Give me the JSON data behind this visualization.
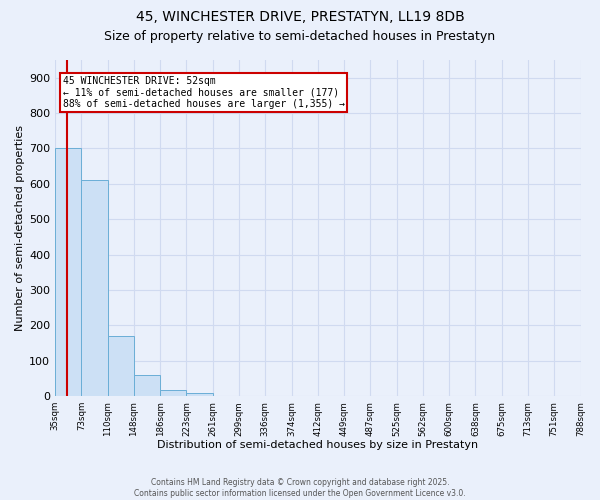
{
  "title": "45, WINCHESTER DRIVE, PRESTATYN, LL19 8DB",
  "subtitle": "Size of property relative to semi-detached houses in Prestatyn",
  "xlabel": "Distribution of semi-detached houses by size in Prestatyn",
  "ylabel": "Number of semi-detached properties",
  "bins": [
    "35sqm",
    "73sqm",
    "110sqm",
    "148sqm",
    "186sqm",
    "223sqm",
    "261sqm",
    "299sqm",
    "336sqm",
    "374sqm",
    "412sqm",
    "449sqm",
    "487sqm",
    "525sqm",
    "562sqm",
    "600sqm",
    "638sqm",
    "675sqm",
    "713sqm",
    "751sqm",
    "788sqm"
  ],
  "bar_heights": [
    700,
    610,
    170,
    60,
    17,
    10,
    0,
    0,
    0,
    0,
    0,
    0,
    0,
    0,
    0,
    0,
    0,
    0,
    0,
    0
  ],
  "bar_color": "#cce0f5",
  "bar_edge_color": "#6aaed6",
  "property_size": 52,
  "red_line_color": "#cc0000",
  "annotation_title": "45 WINCHESTER DRIVE: 52sqm",
  "annotation_line1": "← 11% of semi-detached houses are smaller (177)",
  "annotation_line2": "88% of semi-detached houses are larger (1,355) →",
  "annotation_box_color": "#ffffff",
  "annotation_box_edge": "#cc0000",
  "ylim": [
    0,
    950
  ],
  "yticks": [
    0,
    100,
    200,
    300,
    400,
    500,
    600,
    700,
    800,
    900
  ],
  "footer1": "Contains HM Land Registry data © Crown copyright and database right 2025.",
  "footer2": "Contains public sector information licensed under the Open Government Licence v3.0.",
  "background_color": "#eaf0fb",
  "plot_background": "#eaf0fb",
  "grid_color": "#d0daf0",
  "title_fontsize": 10,
  "subtitle_fontsize": 9
}
